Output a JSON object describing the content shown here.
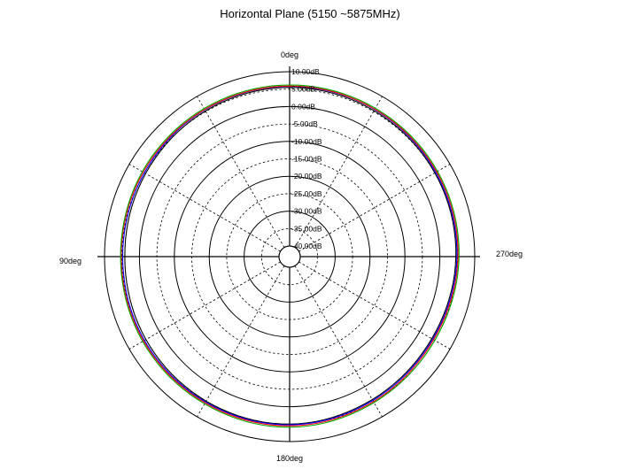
{
  "chart_data": {
    "type": "polar",
    "title": "Horizontal Plane (5150 ~5875MHz)",
    "radial_unit": "dB",
    "r_range": [
      -40,
      10
    ],
    "radial_ticks": [
      "10.00dB",
      "5.00dB",
      "0.00dB",
      "-5.00dB",
      "-10.00dB",
      "-15.00dB",
      "-20.00dB",
      "-25.00dB",
      "-30.00dB",
      "-35.00dB",
      "-40.00dB"
    ],
    "angle_labels": [
      "0deg",
      "90deg",
      "180deg",
      "270deg"
    ],
    "angular_direction": "counterclockwise, 0deg at top",
    "grid": true,
    "series": [
      {
        "color": "#000000",
        "angles_deg": [
          0,
          30,
          60,
          90,
          120,
          150,
          180,
          210,
          240,
          270,
          300,
          330
        ],
        "values_db": [
          5.5,
          5.2,
          4.6,
          4.2,
          4.5,
          4.8,
          5.0,
          4.3,
          4.0,
          4.6,
          5.0,
          5.3
        ]
      },
      {
        "color": "#0000ff",
        "angles_deg": [
          0,
          30,
          60,
          90,
          120,
          150,
          180,
          210,
          240,
          270,
          300,
          330
        ],
        "values_db": [
          5.8,
          5.6,
          5.0,
          4.8,
          5.0,
          5.1,
          5.2,
          4.6,
          4.3,
          4.9,
          5.3,
          5.7
        ]
      },
      {
        "color": "#ff0000",
        "angles_deg": [
          0,
          30,
          60,
          90,
          120,
          150,
          180,
          210,
          240,
          270,
          300,
          330
        ],
        "values_db": [
          5.9,
          5.7,
          5.4,
          5.2,
          5.3,
          5.4,
          5.5,
          5.0,
          4.6,
          5.2,
          5.6,
          5.8
        ]
      },
      {
        "color": "#00aa00",
        "angles_deg": [
          0,
          30,
          60,
          90,
          120,
          150,
          180,
          210,
          240,
          270,
          300,
          330
        ],
        "values_db": [
          6.2,
          6.0,
          5.7,
          5.4,
          5.6,
          5.7,
          5.9,
          5.3,
          5.0,
          5.5,
          5.9,
          6.1
        ]
      }
    ]
  }
}
